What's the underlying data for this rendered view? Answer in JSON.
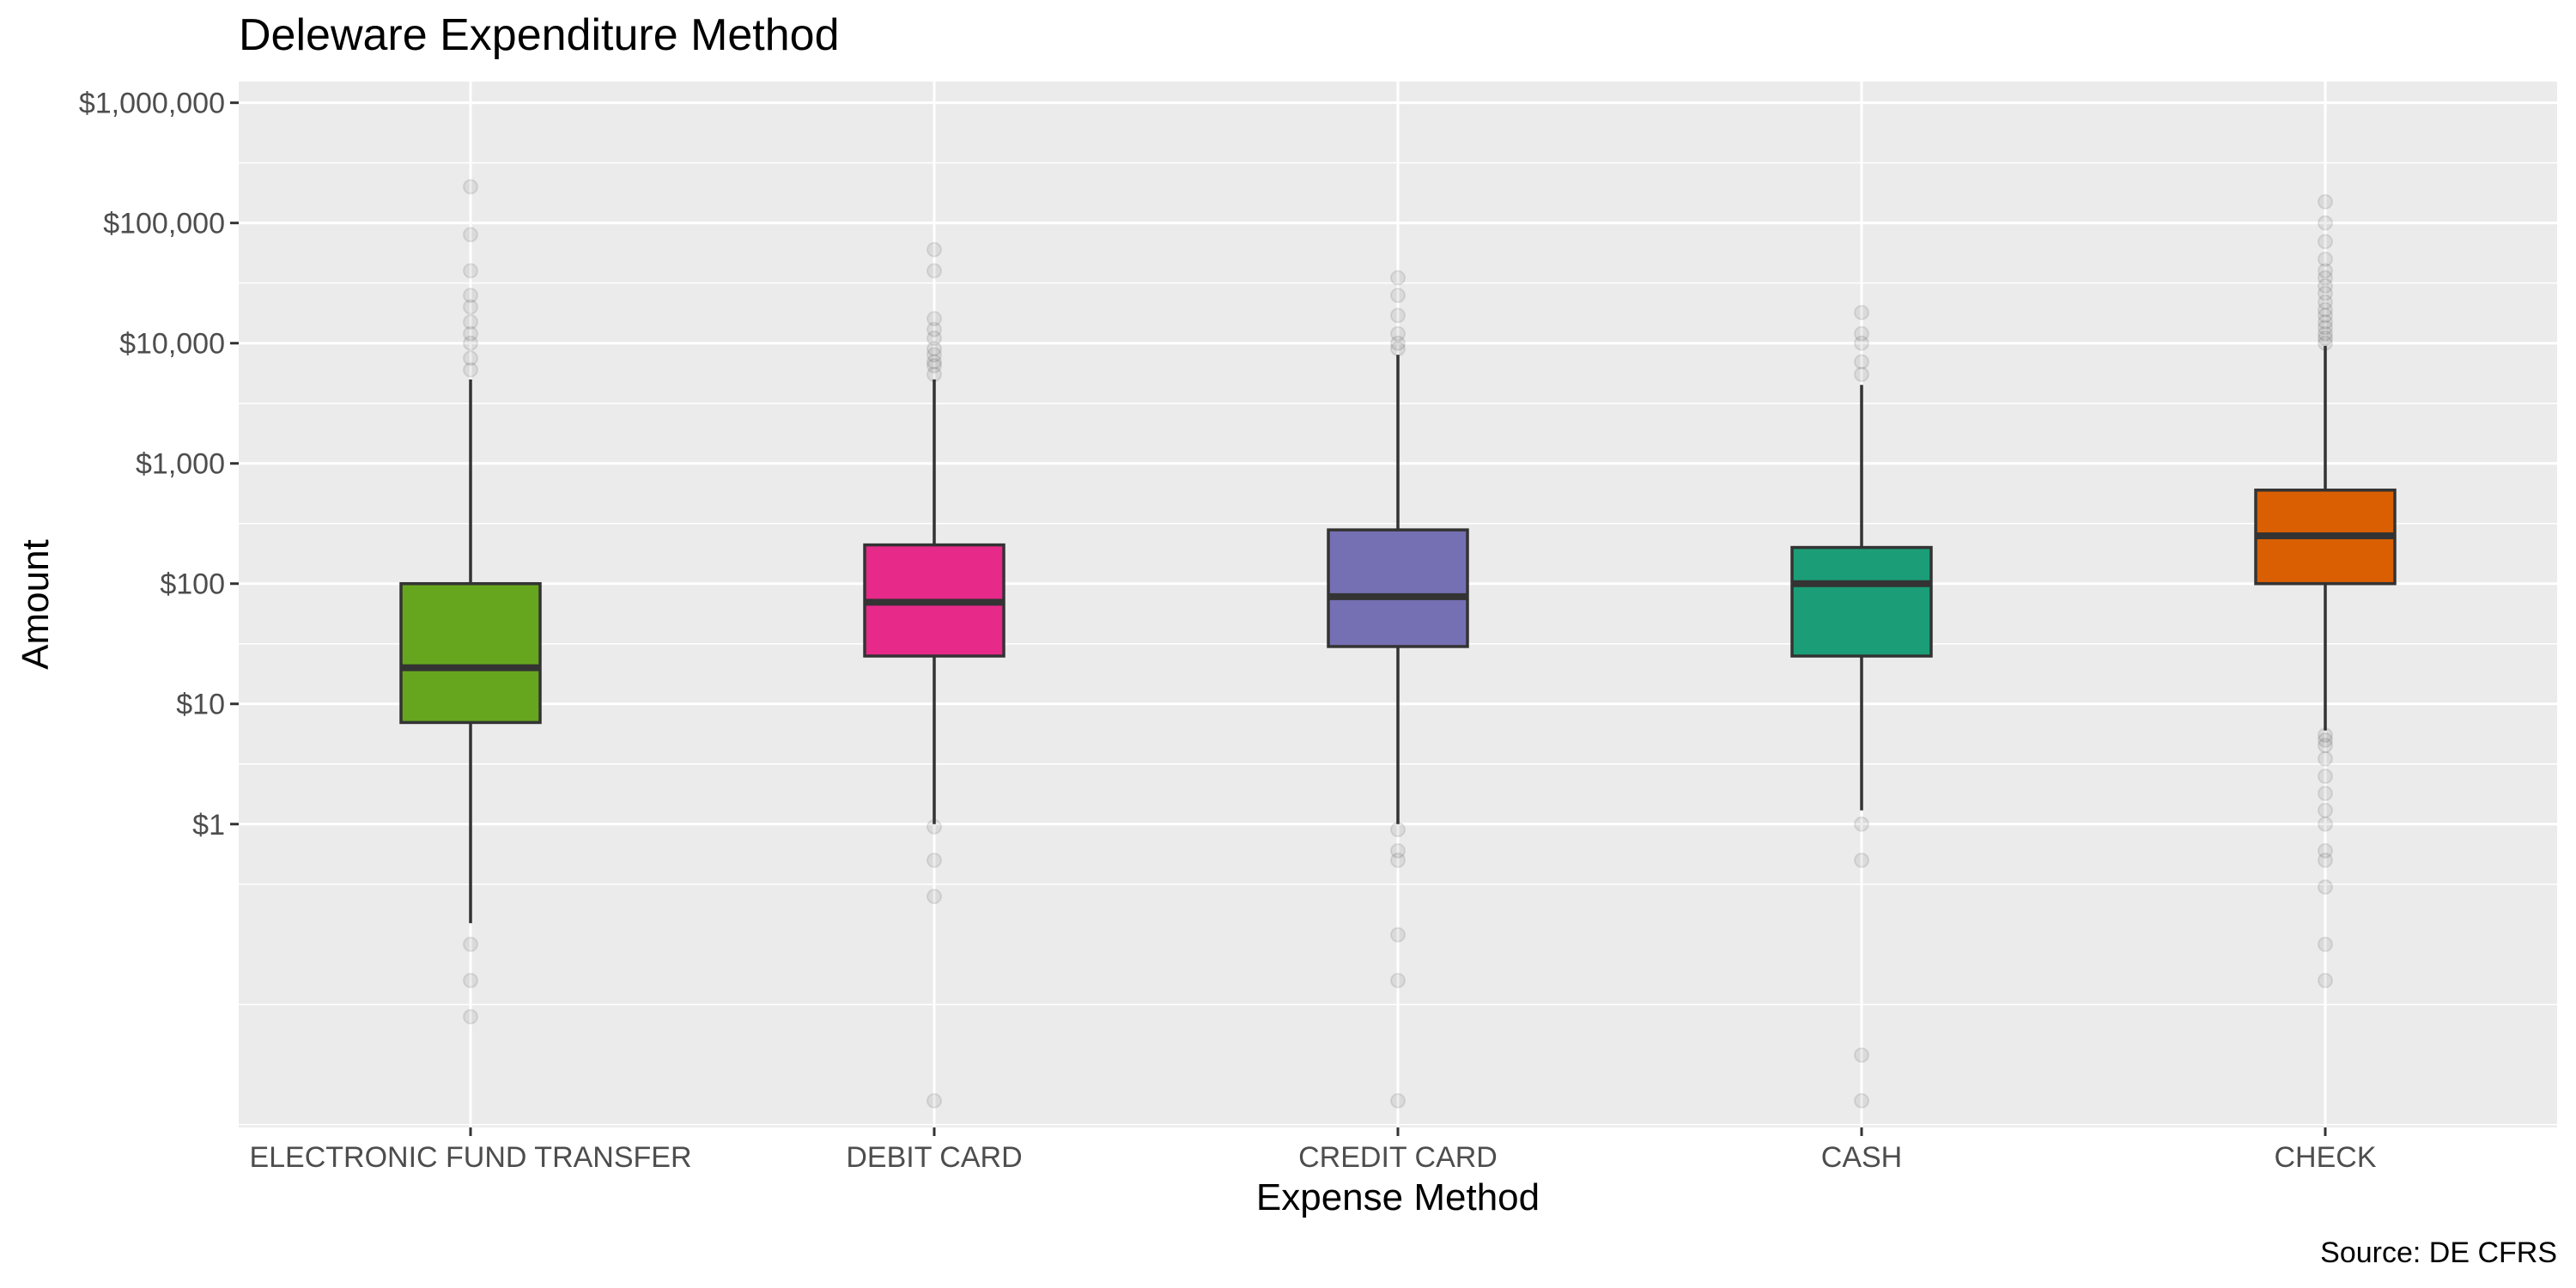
{
  "chart_data": {
    "type": "boxplot",
    "title": "Deleware Expenditure Method",
    "xlabel": "Expense Method",
    "ylabel": "Amount",
    "caption": "Source: DE CFRS",
    "y_scale": "log10",
    "ylim": [
      0.003,
      1500000
    ],
    "y_ticks": [
      1,
      10,
      100,
      1000,
      10000,
      100000,
      1000000
    ],
    "y_tick_labels": [
      "$1",
      "$10",
      "$100",
      "$1,000",
      "$10,000",
      "$100,000",
      "$1,000,000"
    ],
    "grid": true,
    "background": "#ebebeb",
    "categories": [
      {
        "name": "ELECTRONIC FUND TRANSFER",
        "color": "#66a61e",
        "whisker_low": 0.15,
        "q1": 7,
        "median": 20,
        "q3": 100,
        "whisker_high": 5000,
        "outliers": [
          6000,
          7500,
          10000,
          12000,
          15000,
          20000,
          25000,
          40000,
          80000,
          200000,
          0.1,
          0.05,
          0.025
        ]
      },
      {
        "name": "DEBIT CARD",
        "color": "#e7298a",
        "whisker_low": 1,
        "q1": 25,
        "median": 70,
        "q3": 210,
        "whisker_high": 5000,
        "outliers": [
          5500,
          6500,
          7000,
          8000,
          9000,
          11000,
          13000,
          16000,
          40000,
          60000,
          0.95,
          0.5,
          0.25,
          0.005
        ]
      },
      {
        "name": "CREDIT CARD",
        "color": "#7570b3",
        "whisker_low": 1,
        "q1": 30,
        "median": 78,
        "q3": 280,
        "whisker_high": 8000,
        "outliers": [
          9000,
          10000,
          12000,
          17000,
          25000,
          35000,
          0.9,
          0.6,
          0.5,
          0.12,
          0.05,
          0.005
        ]
      },
      {
        "name": "CASH",
        "color": "#1b9e77",
        "whisker_low": 1.3,
        "q1": 25,
        "median": 100,
        "q3": 200,
        "whisker_high": 4500,
        "outliers": [
          5500,
          7000,
          10000,
          12000,
          18000,
          1,
          0.5,
          0.012,
          0.005
        ]
      },
      {
        "name": "CHECK",
        "color": "#d95f02",
        "whisker_low": 6,
        "q1": 100,
        "median": 250,
        "q3": 600,
        "whisker_high": 9500,
        "outliers": [
          10000,
          11000,
          12000,
          13500,
          15000,
          17000,
          19000,
          22000,
          26000,
          30000,
          35000,
          40000,
          50000,
          70000,
          100000,
          150000,
          5.5,
          5,
          4.5,
          3.5,
          2.5,
          1.8,
          1.3,
          1,
          0.6,
          0.5,
          0.3,
          0.1,
          0.05
        ]
      }
    ]
  }
}
